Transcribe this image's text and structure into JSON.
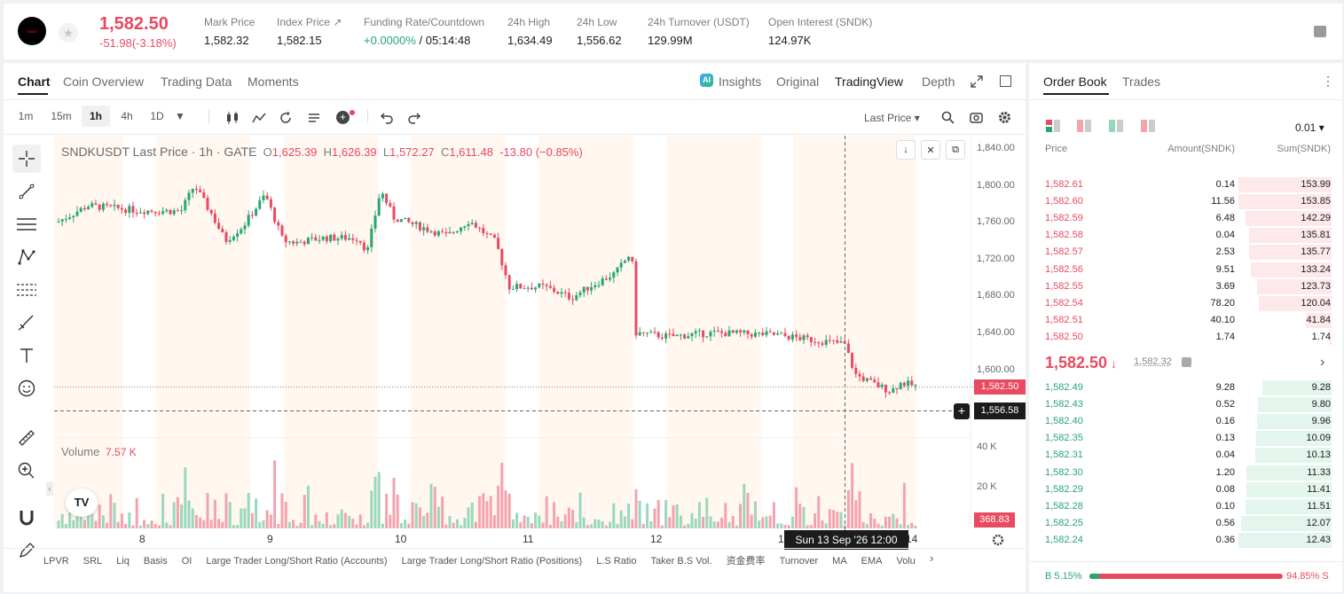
{
  "header": {
    "price": "1,582.50",
    "change": "-51.98(-3.18%)",
    "stats": [
      {
        "label": "Mark Price",
        "value": "1,582.32"
      },
      {
        "label": "Index Price ↗",
        "value": "1,582.15"
      },
      {
        "label": "Funding Rate/Countdown",
        "value_green": "+0.0000%",
        "value": " / 05:14:48"
      },
      {
        "label": "24h High",
        "value": "1,634.49"
      },
      {
        "label": "24h Low",
        "value": "1,556.62"
      },
      {
        "label": "24h Turnover (USDT)",
        "value": "129.99M"
      },
      {
        "label": "Open Interest (SNDK)",
        "value": "124.97K"
      }
    ]
  },
  "tabs": [
    "Chart",
    "Coin Overview",
    "Trading Data",
    "Moments"
  ],
  "view_tabs": {
    "insights": "Insights",
    "original": "Original",
    "tradingview": "TradingView",
    "depth": "Depth"
  },
  "intervals": [
    "1m",
    "15m",
    "1h",
    "4h",
    "1D"
  ],
  "price_source": "Last Price",
  "legend": {
    "title": "SNDKUSDT Last Price · 1h · GATE",
    "o": "1,625.39",
    "h": "1,626.39",
    "l": "1,572.27",
    "c": "1,611.48",
    "chg": "-13.80 (−0.85%)"
  },
  "volume": {
    "label": "Volume",
    "value": "7.57 K",
    "tag": "368.83"
  },
  "yaxis": [
    "1,840.00",
    "1,800.00",
    "1,760.00",
    "1,720.00",
    "1,680.00",
    "1,640.00",
    "1,600.00"
  ],
  "vol_axis": [
    "40 K",
    "20 K"
  ],
  "xaxis": [
    "8",
    "9",
    "10",
    "11",
    "12",
    "13",
    "14"
  ],
  "current_price_tag": "1,582.50",
  "crosshair_price": "1,556.58",
  "crosshair_time": "Sun 13 Sep '26   12:00",
  "indicators": [
    "LPVR",
    "SRL",
    "Liq",
    "Basis",
    "OI",
    "Large Trader Long/Short Ratio (Accounts)",
    "Large Trader Long/Short Ratio (Positions)",
    "L.S Ratio",
    "Taker B.S Vol.",
    "资金费率",
    "Turnover",
    "MA",
    "EMA",
    "Volu"
  ],
  "book": {
    "tabs": [
      "Order Book",
      "Trades"
    ],
    "precision": "0.01",
    "cols": [
      "Price",
      "Amount(SNDK)",
      "Sum(SNDK)"
    ],
    "asks": [
      [
        "1,582.61",
        "0.14",
        "153.99"
      ],
      [
        "1,582.60",
        "11.56",
        "153.85"
      ],
      [
        "1,582.59",
        "6.48",
        "142.29"
      ],
      [
        "1,582.58",
        "0.04",
        "135.81"
      ],
      [
        "1,582.57",
        "2.53",
        "135.77"
      ],
      [
        "1,582.56",
        "9.51",
        "133.24"
      ],
      [
        "1,582.55",
        "3.69",
        "123.73"
      ],
      [
        "1,582.54",
        "78.20",
        "120.04"
      ],
      [
        "1,582.51",
        "40.10",
        "41.84"
      ],
      [
        "1,582.50",
        "1.74",
        "1.74"
      ]
    ],
    "mid_price": "1,582.50",
    "mid_mark": "1,582.32",
    "bids": [
      [
        "1,582.49",
        "9.28",
        "9.28"
      ],
      [
        "1,582.43",
        "0.52",
        "9.80"
      ],
      [
        "1,582.40",
        "0.16",
        "9.96"
      ],
      [
        "1,582.35",
        "0.13",
        "10.09"
      ],
      [
        "1,582.31",
        "0.04",
        "10.13"
      ],
      [
        "1,582.30",
        "1.20",
        "11.33"
      ],
      [
        "1,582.29",
        "0.08",
        "11.41"
      ],
      [
        "1,582.28",
        "0.10",
        "11.51"
      ],
      [
        "1,582.25",
        "0.56",
        "12.07"
      ],
      [
        "1,582.24",
        "0.36",
        "12.43"
      ]
    ],
    "buy_pct": "B 5.15%",
    "sell_pct": "94.85% S",
    "buy_ratio": 0.0515
  },
  "colors": {
    "up": "#26a672",
    "down": "#e84a5f"
  }
}
